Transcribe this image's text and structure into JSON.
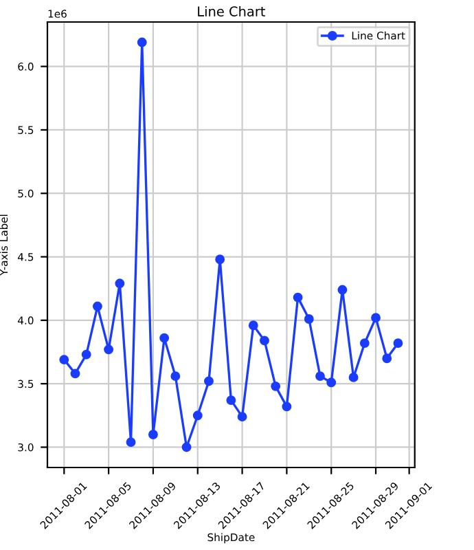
{
  "chart_data": {
    "type": "line",
    "title": "Line Chart",
    "xlabel": "ShipDate",
    "ylabel": "Y-axis Label",
    "annotations": [
      "1e6"
    ],
    "x": [
      "2011-08-01",
      "2011-08-02",
      "2011-08-03",
      "2011-08-04",
      "2011-08-05",
      "2011-08-06",
      "2011-08-07",
      "2011-08-08",
      "2011-08-09",
      "2011-08-10",
      "2011-08-11",
      "2011-08-12",
      "2011-08-13",
      "2011-08-14",
      "2011-08-15",
      "2011-08-16",
      "2011-08-17",
      "2011-08-18",
      "2011-08-19",
      "2011-08-20",
      "2011-08-21",
      "2011-08-22",
      "2011-08-23",
      "2011-08-24",
      "2011-08-25",
      "2011-08-26",
      "2011-08-27",
      "2011-08-28",
      "2011-08-29",
      "2011-08-30",
      "2011-08-31"
    ],
    "series": [
      {
        "name": "Line Chart",
        "color": "#1a3cff",
        "values": [
          3.69,
          3.58,
          3.73,
          4.11,
          3.77,
          4.29,
          3.04,
          6.19,
          3.1,
          3.86,
          3.56,
          3.0,
          3.25,
          3.52,
          4.48,
          3.37,
          3.24,
          3.96,
          3.84,
          3.48,
          3.32,
          4.18,
          4.01,
          3.56,
          3.51,
          4.24,
          3.55,
          3.82,
          4.02,
          3.7,
          3.82
        ]
      }
    ],
    "xlim": [
      "2011-07-30T12:00",
      "2011-09-01T12:00"
    ],
    "xticks": [
      "2011-08-01",
      "2011-08-05",
      "2011-08-09",
      "2011-08-13",
      "2011-08-17",
      "2011-08-21",
      "2011-08-25",
      "2011-08-29",
      "2011-09-01"
    ],
    "ylim": [
      2.84,
      6.35
    ],
    "yticks": [
      {
        "value": 3,
        "label": "3.0"
      },
      3.5,
      {
        "value": 4,
        "label": "4.0"
      },
      4.5,
      {
        "value": 5,
        "label": "5.0"
      },
      5.5,
      {
        "value": 6,
        "label": "6.0"
      }
    ],
    "grid": true,
    "legend": "top right",
    "marker": "circle",
    "line_style": "solid"
  }
}
